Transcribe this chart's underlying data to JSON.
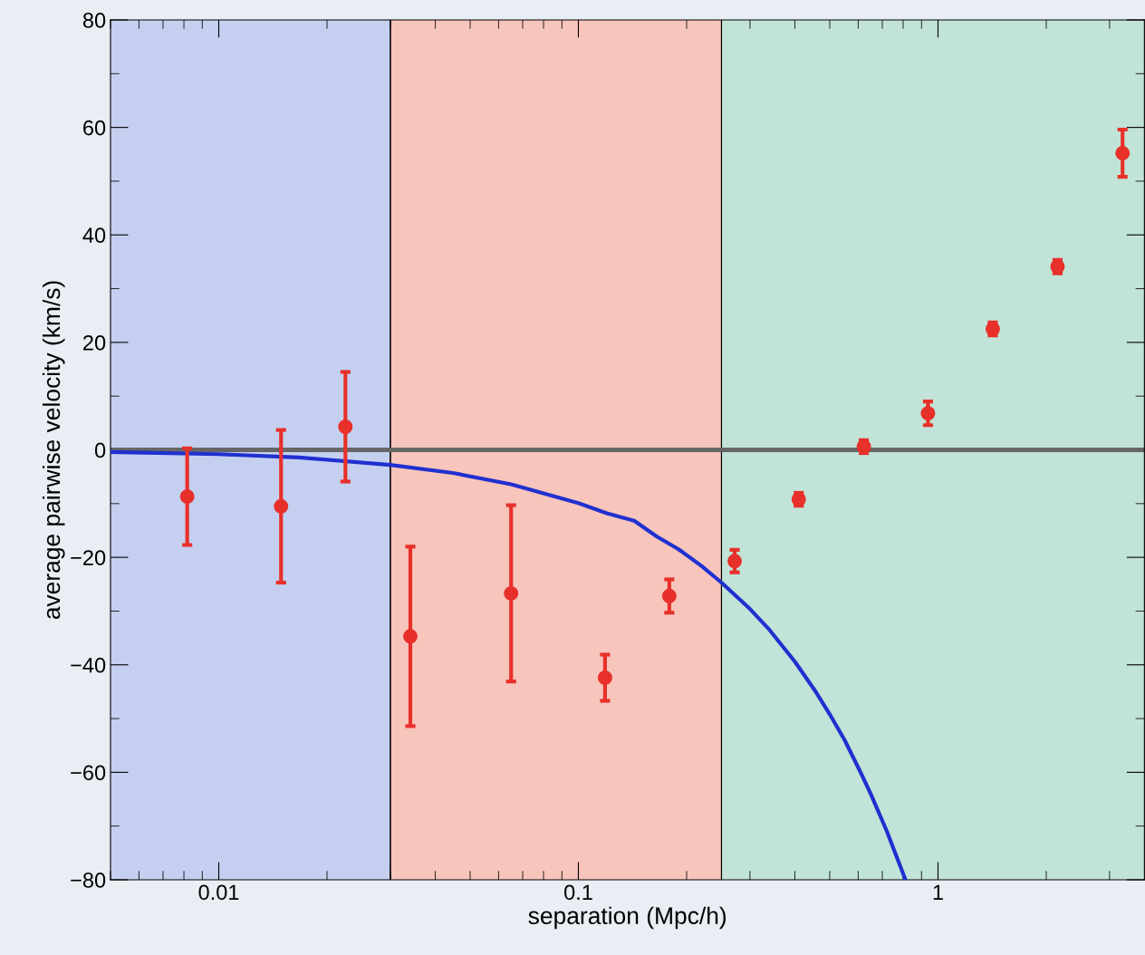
{
  "chart_data": {
    "type": "scatter",
    "xlabel": "separation (Mpc/h)",
    "ylabel": "average pairwise velocity (km/s)",
    "log": "x",
    "xlim": [
      0.005,
      3.75
    ],
    "xticks": [
      {
        "value": 0.01,
        "label": "0.01"
      },
      {
        "value": 0.1,
        "label": "0.1"
      },
      {
        "value": 1,
        "label": "1"
      }
    ],
    "ylim": [
      -80,
      80
    ],
    "yticks": [
      -80,
      -60,
      -40,
      -20,
      0,
      20,
      40,
      60,
      80
    ],
    "grid": false,
    "marker": "circle",
    "bands": [
      {
        "axis": "x",
        "from": 0.005,
        "to": 0.03,
        "color": "#c5d0f0"
      },
      {
        "axis": "x",
        "from": 0.03,
        "to": 0.25,
        "color": "#f7c5bc"
      },
      {
        "axis": "x",
        "from": 0.25,
        "to": 3.75,
        "color": "#c2e3d7"
      }
    ],
    "ref_lines": [
      {
        "axis": "y",
        "value": 0,
        "color": "#666666",
        "line_style": "solid"
      }
    ],
    "series": [
      {
        "type": "line",
        "color": "#2030d0",
        "marker": "none",
        "x": [
          0.005,
          0.01,
          0.0167,
          0.03,
          0.0448,
          0.065,
          0.1,
          0.12,
          0.143,
          0.165,
          0.19,
          0.22,
          0.25,
          0.3,
          0.34,
          0.4,
          0.455,
          0.5,
          0.55,
          0.608,
          0.65,
          0.72,
          0.76,
          0.812
        ],
        "values": [
          -0.4,
          -0.8,
          -1.4,
          -2.8,
          -4.3,
          -6.4,
          -9.9,
          -11.8,
          -13.2,
          -16.1,
          -18.5,
          -21.6,
          -24.7,
          -29.6,
          -33.5,
          -39.4,
          -44.8,
          -49.2,
          -54,
          -59.9,
          -64,
          -70.9,
          -75,
          -80
        ]
      },
      {
        "color": "#e8302a",
        "x": [
          0.00817,
          0.0149,
          0.0225,
          0.0341,
          0.065,
          0.1186,
          0.179,
          0.272,
          0.41,
          0.622,
          0.938,
          1.42,
          2.15,
          3.26
        ],
        "values": [
          -8.7,
          -10.5,
          4.3,
          -34.7,
          -26.7,
          -42.4,
          -27.2,
          -20.7,
          -9.2,
          0.6,
          6.8,
          22.5,
          34.1,
          55.2
        ],
        "errors": [
          9,
          14.2,
          10.2,
          16.7,
          16.4,
          4.3,
          3.1,
          2.1,
          1.2,
          1.2,
          2.2,
          1.2,
          1.25,
          4.4
        ]
      }
    ]
  }
}
